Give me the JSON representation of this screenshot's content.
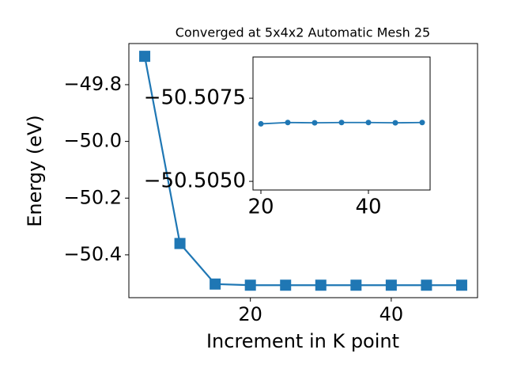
{
  "chart_data": [
    {
      "type": "line",
      "title": "Converged at 5x4x2 Automatic Mesh 25",
      "x_label": "Increment in K point",
      "y_label": "Energy (eV)",
      "x": [
        5,
        10,
        15,
        20,
        25,
        30,
        35,
        40,
        45,
        50
      ],
      "series": [
        {
          "name": "Energy",
          "color": "#1f77b4",
          "marker": "square",
          "values": [
            -49.7,
            -50.36,
            -50.503,
            -50.507,
            -50.507,
            -50.507,
            -50.507,
            -50.507,
            -50.507,
            -50.507
          ]
        }
      ],
      "xlim": [
        2.75,
        52.25
      ],
      "ylim": [
        -50.551,
        -49.655
      ],
      "xticks": [
        20,
        40
      ],
      "yticks": [
        {
          "value": -50.4,
          "label": "−50.4"
        },
        {
          "value": -50.2,
          "label": "−50.2"
        },
        {
          "value": -50.0,
          "label": "−50.0"
        },
        {
          "value": -49.8,
          "label": "−49.8"
        }
      ]
    },
    {
      "type": "line",
      "x": [
        20,
        25,
        30,
        35,
        40,
        45,
        50
      ],
      "series": [
        {
          "name": "Energy",
          "color": "#1f77b4",
          "marker": "circle",
          "values": [
            -50.50673,
            -50.50677,
            -50.50676,
            -50.50677,
            -50.50677,
            -50.50676,
            -50.50677
          ]
        }
      ],
      "xlim": [
        18.53,
        51.47
      ],
      "ylim": [
        -50.50474,
        -50.50874
      ],
      "xticks": [
        20,
        40
      ],
      "yticks": [
        {
          "value": -50.505,
          "label": "−50.5050"
        },
        {
          "value": -50.5075,
          "label": "−50.5075"
        }
      ]
    }
  ]
}
